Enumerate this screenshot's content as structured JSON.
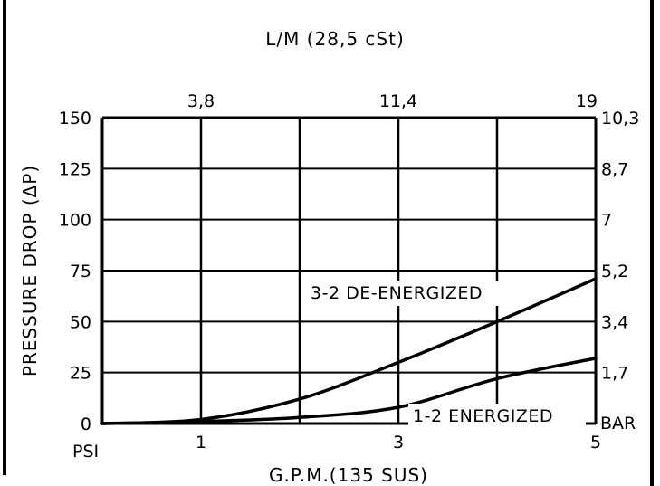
{
  "chart_data": {
    "type": "line",
    "top_axis_title": "L/M (28,5 cSt)",
    "top_ticks": [
      "3,8",
      "11,4",
      "19"
    ],
    "ylabel": "PRESSURE DROP (ΔP)",
    "y_ticks": [
      "150",
      "125",
      "100",
      "75",
      "50",
      "25",
      "0"
    ],
    "y_unit": "PSI",
    "right_ticks": [
      "10,3",
      "8,7",
      "7",
      "5,2",
      "3,4",
      "1,7"
    ],
    "right_unit": "BAR",
    "x_ticks": [
      "1",
      "3",
      "5"
    ],
    "xlabel": "G.P.M.(135 SUS)",
    "xlim": [
      0,
      5
    ],
    "ylim": [
      0,
      150
    ],
    "grid": true,
    "series": [
      {
        "name": "3-2 DE-ENERGIZED",
        "x": [
          0,
          1,
          2,
          3,
          4,
          5
        ],
        "y": [
          0,
          2,
          12,
          30,
          50,
          71
        ]
      },
      {
        "name": "1-2 ENERGIZED",
        "x": [
          0,
          1,
          2,
          3,
          4,
          5
        ],
        "y": [
          0,
          1,
          3,
          8,
          22,
          32
        ]
      }
    ]
  }
}
